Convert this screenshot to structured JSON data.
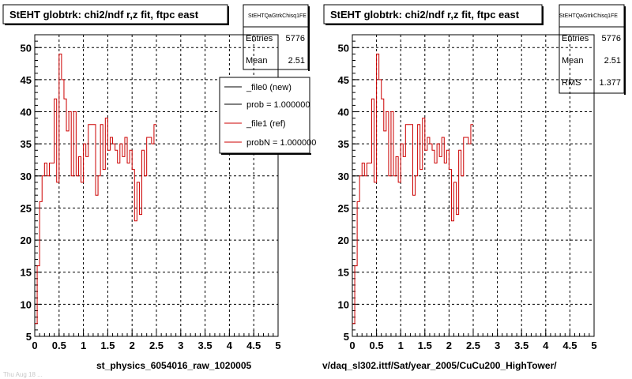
{
  "colors": {
    "histogram_ref": "#cc0000",
    "histogram_new": "#000000",
    "grid": "#000000",
    "frame": "#000000"
  },
  "footer_text": "Thu Aug 18 ...",
  "chart_data": [
    {
      "type": "line",
      "title": "StEHT globtrk: chi2/ndf r,z fit, ftpc east",
      "stats": {
        "name": "StEHTQaGtrkChisq1FE",
        "entries_label": "Entries",
        "entries": "5776",
        "mean_label": "Mean",
        "mean": "2.51"
      },
      "legend": [
        {
          "label": "_file0 (new)",
          "color": "#000000"
        },
        {
          "label": "prob = 1.000000",
          "color": "#000000"
        },
        {
          "label": "_file1 (ref)",
          "color": "#cc0000"
        },
        {
          "label": "probN = 1.000000",
          "color": "#cc0000"
        }
      ],
      "xlabel": "st_physics_6054016_raw_1020005",
      "xlim": [
        0,
        5
      ],
      "ylim": [
        5,
        52
      ],
      "xticks": [
        "0",
        "0.5",
        "1",
        "1.5",
        "2",
        "2.5",
        "3",
        "3.5",
        "4",
        "4.5",
        "5"
      ],
      "yticks": [
        "5",
        "10",
        "15",
        "20",
        "25",
        "30",
        "35",
        "40",
        "45",
        "50"
      ],
      "grid": true,
      "bin_width": 0.05,
      "series": [
        {
          "values": [
            7,
            16,
            26,
            30,
            32,
            30,
            32,
            32,
            42,
            29,
            49,
            45,
            42,
            37,
            40,
            30,
            40,
            30,
            33,
            29,
            35,
            33,
            38,
            38,
            38,
            27,
            30,
            38,
            31,
            39,
            34,
            36,
            35,
            34,
            32,
            35,
            33,
            36,
            32,
            34,
            31,
            23,
            29,
            24,
            34,
            30,
            36,
            36,
            35,
            38
          ]
        }
      ]
    },
    {
      "type": "line",
      "title": "StEHT globtrk: chi2/ndf r,z fit, ftpc east",
      "stats": {
        "name": "StEHTQaGtrkChisq1FE",
        "entries_label": "Entries",
        "entries": "5776",
        "mean_label": "Mean",
        "mean": "2.51",
        "rms_label": "RMS",
        "rms": "1.377"
      },
      "xlabel": "v/daq_sl302.ittf/Sat/year_2005/CuCu200_HighTower/",
      "xlim": [
        0,
        5
      ],
      "ylim": [
        5,
        52
      ],
      "xticks": [
        "0",
        "0.5",
        "1",
        "1.5",
        "2",
        "2.5",
        "3",
        "3.5",
        "4",
        "4.5",
        "5"
      ],
      "yticks": [
        "5",
        "10",
        "15",
        "20",
        "25",
        "30",
        "35",
        "40",
        "45",
        "50"
      ],
      "grid": true,
      "bin_width": 0.05,
      "series": [
        {
          "values": [
            7,
            16,
            26,
            30,
            32,
            30,
            32,
            32,
            42,
            29,
            49,
            45,
            42,
            37,
            40,
            30,
            40,
            30,
            33,
            29,
            35,
            33,
            38,
            38,
            38,
            27,
            30,
            38,
            31,
            39,
            34,
            36,
            35,
            34,
            32,
            35,
            33,
            36,
            32,
            34,
            31,
            23,
            29,
            24,
            34,
            30,
            36,
            36,
            35,
            38
          ]
        }
      ]
    }
  ]
}
